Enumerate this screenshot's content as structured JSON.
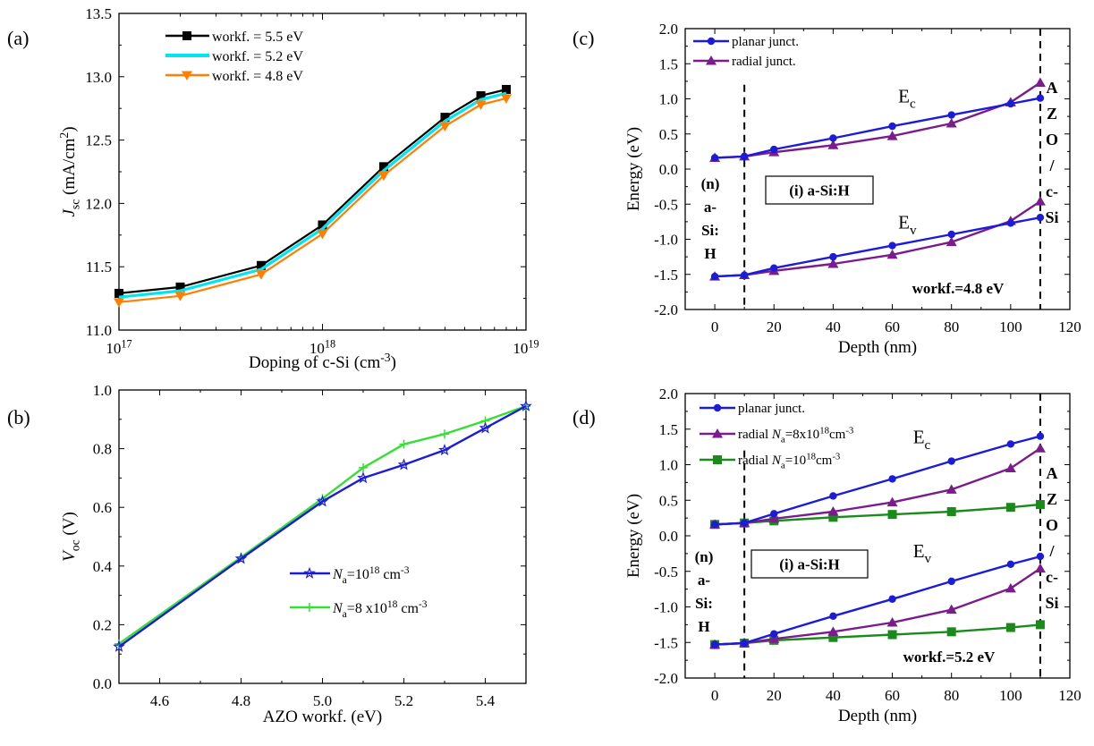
{
  "chart_data": [
    {
      "panel": "(a)",
      "type": "line",
      "xlabel": "Doping of c-Si (cm",
      "xlabel_sup": "-3",
      "xlabel_end": ")",
      "ylabel_main": "J",
      "ylabel_sub": "sc",
      "ylabel_rest": " (mA/cm",
      "ylabel_sup": "2",
      "ylabel_end": ")",
      "xscale": "log",
      "xlim": [
        1e+17,
        1e+19
      ],
      "ylim": [
        11.0,
        13.5
      ],
      "xticks": [
        {
          "value": 1e+17,
          "base": "10",
          "exp": "17"
        },
        {
          "value": 1e+18,
          "base": "10",
          "exp": "18"
        },
        {
          "value": 1e+19,
          "base": "10",
          "exp": "19"
        }
      ],
      "yticks": [
        "11.0",
        "11.5",
        "12.0",
        "12.5",
        "13.0",
        "13.5"
      ],
      "legend_position": "top-left",
      "x": [
        1e+17,
        2e+17,
        5e+17,
        1e+18,
        2e+18,
        4e+18,
        6e+18,
        8e+18
      ],
      "series": [
        {
          "name": "workf. = 5.5 eV",
          "color": "#000000",
          "marker": "square",
          "values": [
            11.29,
            11.34,
            11.51,
            11.83,
            12.29,
            12.68,
            12.85,
            12.9
          ]
        },
        {
          "name": "workf. = 5.2 eV",
          "color": "#00e5ee",
          "marker": "none",
          "values": [
            11.26,
            11.31,
            11.48,
            11.8,
            12.26,
            12.65,
            12.82,
            12.87
          ]
        },
        {
          "name": "workf. = 4.8 eV",
          "color": "#ff7f00",
          "marker": "triangle-down",
          "values": [
            11.22,
            11.27,
            11.44,
            11.76,
            12.22,
            12.61,
            12.78,
            12.83
          ]
        }
      ]
    },
    {
      "panel": "(b)",
      "type": "line",
      "xlabel": "AZO workf. (eV)",
      "ylabel_main": "V",
      "ylabel_sub": "oc",
      "ylabel_rest": " (V)",
      "xlim": [
        4.5,
        5.5
      ],
      "ylim": [
        0.0,
        1.0
      ],
      "xticks": [
        "4.6",
        "4.8",
        "5.0",
        "5.2",
        "5.4"
      ],
      "yticks": [
        "0.0",
        "0.2",
        "0.4",
        "0.6",
        "0.8",
        "1.0"
      ],
      "legend_position": "bottom-right",
      "series": [
        {
          "name_main": "N",
          "name_sub": "a",
          "name_rest": "=10",
          "name_sup": "18",
          "name_end": " cm",
          "name_sup2": "-3",
          "color": "#1c1cd8",
          "marker": "star",
          "x": [
            4.5,
            4.8,
            5.0,
            5.1,
            5.2,
            5.3,
            5.4,
            5.5
          ],
          "values": [
            0.125,
            0.425,
            0.62,
            0.7,
            0.745,
            0.795,
            0.87,
            0.945
          ]
        },
        {
          "name_main": "N",
          "name_sub": "a",
          "name_rest": "=8 x10",
          "name_sup": "18",
          "name_end": " cm",
          "name_sup2": "-3",
          "color": "#33e033",
          "marker": "plus",
          "x": [
            4.5,
            4.8,
            5.0,
            5.1,
            5.2,
            5.3,
            5.4,
            5.5
          ],
          "values": [
            0.135,
            0.43,
            0.63,
            0.735,
            0.815,
            0.85,
            0.895,
            0.945
          ]
        }
      ]
    },
    {
      "panel": "(c)",
      "type": "line",
      "xlabel": "Depth (nm)",
      "ylabel": "Energy (eV)",
      "xlim": [
        -10,
        120
      ],
      "ylim": [
        -2.0,
        2.0
      ],
      "xticks": [
        "0",
        "20",
        "40",
        "60",
        "80",
        "100",
        "120"
      ],
      "yticks": [
        "-2.0",
        "-1.5",
        "-1.0",
        "-0.5",
        "0.0",
        "0.5",
        "1.0",
        "1.5",
        "2.0"
      ],
      "legend_position": "top-left",
      "vlines": [
        10,
        110
      ],
      "band_labels": [
        {
          "main": "E",
          "sub": "c",
          "x": 62,
          "y": 0.95
        },
        {
          "main": "E",
          "sub": "v",
          "x": 62,
          "y": -0.85
        }
      ],
      "region_box": "(i) a-Si:H",
      "n_region": [
        "(n)",
        "a-",
        "Si:",
        "H"
      ],
      "interface_chars": [
        {
          "text": "A",
          "color": "#1c1cd8"
        },
        {
          "text": "Z",
          "color": "#1c1cd8"
        },
        {
          "text": "O",
          "color": "#1c1cd8"
        },
        {
          "text": "/",
          "color": "#1c1cd8"
        },
        {
          "text": "c-",
          "color": "#7a1c8c"
        },
        {
          "text": "Si",
          "color": "#7a1c8c"
        }
      ],
      "annotation": "workf.=4.8 eV",
      "series": [
        {
          "name": "planar junct.",
          "color": "#1c1cd8",
          "marker": "circle",
          "x": [
            0,
            10,
            20,
            40,
            60,
            80,
            100,
            110
          ],
          "values_upper": [
            0.16,
            0.18,
            0.28,
            0.44,
            0.61,
            0.77,
            0.93,
            1.01
          ],
          "values_lower": [
            -1.53,
            -1.51,
            -1.41,
            -1.25,
            -1.09,
            -0.93,
            -0.77,
            -0.69
          ]
        },
        {
          "name": "radial junct.",
          "color": "#7a1c8c",
          "marker": "triangle",
          "x": [
            0,
            10,
            20,
            40,
            60,
            80,
            100,
            110
          ],
          "values_upper": [
            0.16,
            0.18,
            0.24,
            0.34,
            0.47,
            0.65,
            0.95,
            1.23
          ],
          "values_lower": [
            -1.53,
            -1.51,
            -1.45,
            -1.35,
            -1.22,
            -1.04,
            -0.74,
            -0.46
          ]
        }
      ]
    },
    {
      "panel": "(d)",
      "type": "line",
      "xlabel": "Depth (nm)",
      "ylabel": "Energy (eV)",
      "xlim": [
        -10,
        120
      ],
      "ylim": [
        -2.0,
        2.0
      ],
      "xticks": [
        "0",
        "20",
        "40",
        "60",
        "80",
        "100",
        "120"
      ],
      "yticks": [
        "-2.0",
        "-1.5",
        "-1.0",
        "-0.5",
        "0.0",
        "0.5",
        "1.0",
        "1.5",
        "2.0"
      ],
      "legend_position": "top-left",
      "vlines": [
        10,
        110
      ],
      "band_labels": [
        {
          "main": "E",
          "sub": "c",
          "x": 67,
          "y": 1.3
        },
        {
          "main": "E",
          "sub": "v",
          "x": 67,
          "y": -0.3
        }
      ],
      "region_box": "(i) a-Si:H",
      "n_region": [
        "(n)",
        "a-",
        "Si:",
        "H"
      ],
      "interface_chars": [
        {
          "text": "A",
          "color": "#1c1cd8"
        },
        {
          "text": "Z",
          "color": "#1c1cd8"
        },
        {
          "text": "O",
          "color": "#1c1cd8"
        },
        {
          "text": "/",
          "color": "#1c1cd8"
        },
        {
          "text": "c-",
          "color": "#1a8a1a"
        },
        {
          "text": "Si",
          "color": "#1a8a1a"
        }
      ],
      "annotation": "workf.=5.2 eV",
      "series": [
        {
          "name_main": "planar junct.",
          "color": "#1c1cd8",
          "marker": "circle",
          "x": [
            0,
            10,
            20,
            40,
            60,
            80,
            100,
            110
          ],
          "values_upper": [
            0.16,
            0.18,
            0.31,
            0.56,
            0.8,
            1.05,
            1.29,
            1.4
          ],
          "values_lower": [
            -1.53,
            -1.51,
            -1.38,
            -1.13,
            -0.89,
            -0.64,
            -0.4,
            -0.29
          ]
        },
        {
          "name_main": "radial ",
          "name_it": "N",
          "name_sub": "a",
          "name_rest": "=8x10",
          "name_sup": "18",
          "name_end": "cm",
          "name_sup2": "-3",
          "color": "#7a1c8c",
          "marker": "triangle",
          "x": [
            0,
            10,
            20,
            40,
            60,
            80,
            100,
            110
          ],
          "values_upper": [
            0.16,
            0.18,
            0.24,
            0.34,
            0.47,
            0.65,
            0.95,
            1.23
          ],
          "values_lower": [
            -1.53,
            -1.51,
            -1.45,
            -1.35,
            -1.22,
            -1.04,
            -0.74,
            -0.46
          ]
        },
        {
          "name_main": "radial ",
          "name_it": "N",
          "name_sub": "a",
          "name_rest": "=10",
          "name_sup": "18",
          "name_end": "cm",
          "name_sup2": "-3",
          "color": "#1a8a1a",
          "marker": "square",
          "x": [
            0,
            10,
            20,
            40,
            60,
            80,
            100,
            110
          ],
          "values_upper": [
            0.16,
            0.18,
            0.21,
            0.26,
            0.3,
            0.34,
            0.4,
            0.44
          ],
          "values_lower": [
            -1.53,
            -1.51,
            -1.47,
            -1.43,
            -1.39,
            -1.35,
            -1.29,
            -1.25
          ]
        }
      ]
    }
  ]
}
